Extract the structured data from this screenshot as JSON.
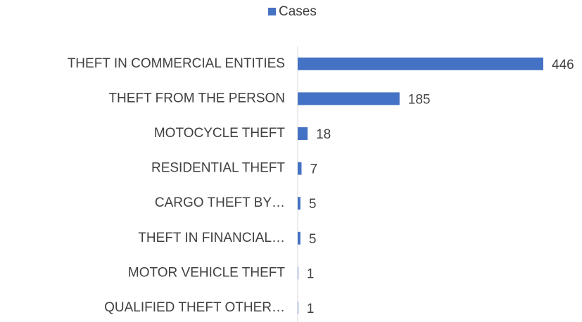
{
  "chart_data": {
    "type": "bar",
    "orientation": "horizontal",
    "categories": [
      "THEFT IN COMMERCIAL ENTITIES",
      "THEFT FROM THE PERSON",
      "MOTOCYCLE THEFT",
      "RESIDENTIAL THEFT",
      "CARGO THEFT BY…",
      "THEFT IN FINANCIAL…",
      "MOTOR VEHICLE THEFT",
      "QUALIFIED THEFT OTHER…"
    ],
    "series": [
      {
        "name": "Cases",
        "color": "#4472c4",
        "values": [
          446,
          185,
          18,
          7,
          5,
          5,
          1,
          1
        ]
      }
    ],
    "legend": "top"
  }
}
